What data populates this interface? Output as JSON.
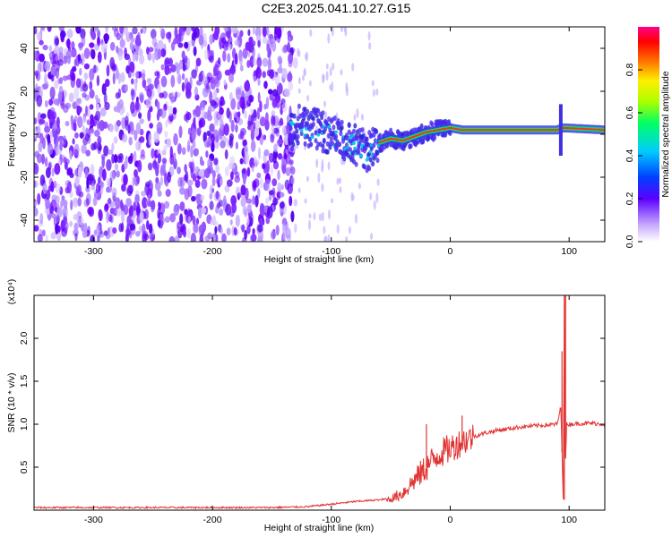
{
  "title": "C2E3.2025.041.10.27.G15",
  "chart_data": [
    {
      "type": "heatmap",
      "xlabel": "Height of straight line (km)",
      "ylabel": "Frequency (Hz)",
      "xlim": [
        -350,
        130
      ],
      "ylim": [
        -50,
        50
      ],
      "xticks": [
        -300,
        -200,
        -100,
        0,
        100
      ],
      "yticks": [
        -40,
        -20,
        0,
        20,
        40
      ],
      "colorbar": {
        "label": "Normalized spectral amplitude",
        "range": [
          0,
          1
        ],
        "ticks": [
          "0.0",
          "0.2",
          "0.4",
          "0.6",
          "0.8"
        ],
        "tick_values": [
          0.0,
          0.2,
          0.4,
          0.6,
          0.8
        ]
      },
      "ridge": [
        {
          "x": -130,
          "y": 5
        },
        {
          "x": -110,
          "y": 2
        },
        {
          "x": -95,
          "y": -2
        },
        {
          "x": -80,
          "y": -5
        },
        {
          "x": -70,
          "y": -8
        },
        {
          "x": -60,
          "y": -4
        },
        {
          "x": -50,
          "y": -2
        },
        {
          "x": -40,
          "y": -3
        },
        {
          "x": -30,
          "y": -1
        },
        {
          "x": -20,
          "y": 1
        },
        {
          "x": -10,
          "y": 2
        },
        {
          "x": 0,
          "y": 3
        },
        {
          "x": 10,
          "y": 2
        },
        {
          "x": 50,
          "y": 2
        },
        {
          "x": 90,
          "y": 2
        },
        {
          "x": 95,
          "y": 3
        },
        {
          "x": 130,
          "y": 2
        }
      ]
    },
    {
      "type": "line",
      "xlabel": "Height of straight line (km)",
      "ylabel": "SNR (10 * v/v)",
      "yscale_label": "(x10⁴)",
      "xlim": [
        -350,
        130
      ],
      "ylim": [
        0,
        2.5
      ],
      "xticks": [
        -300,
        -200,
        -100,
        0,
        100
      ],
      "yticks": [
        0.5,
        1.0,
        1.5,
        2.0
      ],
      "ytick_labels": [
        "0.5",
        "1.0",
        "1.5",
        "2.0"
      ],
      "series": [
        {
          "x": [
            -350,
            -300,
            -250,
            -200,
            -150,
            -120,
            -100,
            -80,
            -60,
            -50,
            -40,
            -30,
            -20,
            -10,
            0,
            10,
            20,
            30,
            40,
            50,
            60,
            70,
            80,
            90,
            93,
            95,
            96,
            97,
            98,
            100,
            110,
            120,
            130
          ],
          "y": [
            0.03,
            0.03,
            0.03,
            0.03,
            0.03,
            0.04,
            0.07,
            0.1,
            0.12,
            0.13,
            0.2,
            0.35,
            0.5,
            0.65,
            0.72,
            0.8,
            0.86,
            0.9,
            0.93,
            0.95,
            0.97,
            0.98,
            0.99,
            1.0,
            1.2,
            0.15,
            2.5,
            0.6,
            1.0,
            1.0,
            1.01,
            1.01,
            1.0
          ],
          "color": "#e23232"
        }
      ],
      "spikes": [
        {
          "x": -20,
          "y": 1.0
        },
        {
          "x": 10,
          "y": 1.1
        },
        {
          "x": 94,
          "y": 1.85
        },
        {
          "x": 96,
          "y": 0.12
        },
        {
          "x": 97,
          "y": 2.5
        }
      ]
    }
  ]
}
